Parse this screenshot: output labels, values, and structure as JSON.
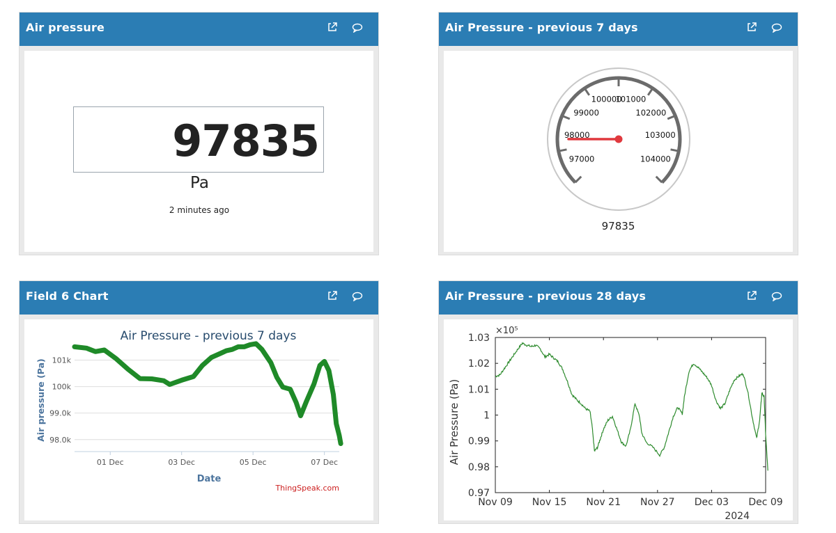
{
  "widgets": {
    "air_pressure": {
      "title": "Air pressure",
      "value": "97835",
      "unit": "Pa",
      "updated": "2 minutes ago"
    },
    "gauge": {
      "title": "Air Pressure - previous 7 days",
      "value": "97835",
      "ticks": [
        "97000",
        "98000",
        "99000",
        "100000",
        "101000",
        "102000",
        "103000",
        "104000"
      ],
      "needle_value": 97835,
      "colors": {
        "needle": "#e0393e",
        "ring": "#6b6b6b"
      }
    },
    "field6": {
      "title": "Field 6 Chart",
      "credit": "ThingSpeak.com"
    },
    "prev28": {
      "title": "Air Pressure - previous 28 days"
    }
  },
  "chart_data": [
    {
      "type": "line",
      "title": "Air Pressure - previous 7 days",
      "xlabel": "Date",
      "ylabel": "Air pressure (Pa)",
      "x_ticks": [
        "01 Dec",
        "03 Dec",
        "05 Dec",
        "07 Dec"
      ],
      "y_ticks": [
        "98.0k",
        "99.0k",
        "100k",
        "101k"
      ],
      "ylim": [
        97600,
        101800
      ],
      "xlim": [
        "2024-11-30T00:00",
        "2024-12-07T10:00"
      ],
      "grid": true,
      "color": "#1f8a28",
      "series": [
        {
          "values": [
            [
              "2024-11-30T00:00",
              101500
            ],
            [
              "2024-11-30T08:00",
              101450
            ],
            [
              "2024-11-30T14:00",
              101320
            ],
            [
              "2024-11-30T20:00",
              101380
            ],
            [
              "2024-12-01T04:00",
              101050
            ],
            [
              "2024-12-01T12:00",
              100650
            ],
            [
              "2024-12-01T20:00",
              100300
            ],
            [
              "2024-12-02T04:00",
              100290
            ],
            [
              "2024-12-02T12:00",
              100220
            ],
            [
              "2024-12-02T16:00",
              100080
            ],
            [
              "2024-12-03T00:00",
              100240
            ],
            [
              "2024-12-03T08:00",
              100380
            ],
            [
              "2024-12-03T14:00",
              100800
            ],
            [
              "2024-12-03T20:00",
              101100
            ],
            [
              "2024-12-04T02:00",
              101250
            ],
            [
              "2024-12-04T06:00",
              101350
            ],
            [
              "2024-12-04T10:00",
              101400
            ],
            [
              "2024-12-04T14:00",
              101500
            ],
            [
              "2024-12-04T18:00",
              101500
            ],
            [
              "2024-12-04T22:00",
              101580
            ],
            [
              "2024-12-05T02:00",
              101620
            ],
            [
              "2024-12-05T06:00",
              101400
            ],
            [
              "2024-12-05T12:00",
              100900
            ],
            [
              "2024-12-05T16:00",
              100350
            ],
            [
              "2024-12-05T20:00",
              99980
            ],
            [
              "2024-12-06T01:00",
              99900
            ],
            [
              "2024-12-06T05:00",
              99400
            ],
            [
              "2024-12-06T08:00",
              98900
            ],
            [
              "2024-12-06T12:00",
              99450
            ],
            [
              "2024-12-06T17:00",
              100100
            ],
            [
              "2024-12-06T21:00",
              100800
            ],
            [
              "2024-12-07T00:00",
              100950
            ],
            [
              "2024-12-07T03:00",
              100600
            ],
            [
              "2024-12-07T06:00",
              99700
            ],
            [
              "2024-12-07T08:00",
              98600
            ],
            [
              "2024-12-07T10:00",
              98150
            ],
            [
              "2024-12-07T11:00",
              97850
            ]
          ]
        }
      ]
    },
    {
      "type": "line",
      "title": "",
      "xlabel": "",
      "ylabel": "Air Pressure (Pa)",
      "x_ticks": [
        "Nov 09",
        "Nov 15",
        "Nov 21",
        "Nov 27",
        "Dec 03",
        "Dec 09"
      ],
      "x_tick_year": "2024",
      "y_ticks": [
        "0.97",
        "0.98",
        "0.99",
        "1",
        "1.01",
        "1.02",
        "1.03"
      ],
      "y_exponent": "×10⁵",
      "ylim": [
        97000,
        103000
      ],
      "xlim": [
        "2024-11-09",
        "2024-12-09"
      ],
      "grid": false,
      "color": "#2e8b2e",
      "series": [
        {
          "values": [
            [
              "2024-11-09T00:00",
              101500
            ],
            [
              "2024-11-09T12:00",
              101550
            ],
            [
              "2024-11-10T00:00",
              101800
            ],
            [
              "2024-11-10T12:00",
              102050
            ],
            [
              "2024-11-11T00:00",
              102300
            ],
            [
              "2024-11-11T12:00",
              102550
            ],
            [
              "2024-11-12T00:00",
              102780
            ],
            [
              "2024-11-12T12:00",
              102700
            ],
            [
              "2024-11-13T00:00",
              102650
            ],
            [
              "2024-11-13T12:00",
              102700
            ],
            [
              "2024-11-14T00:00",
              102550
            ],
            [
              "2024-11-14T12:00",
              102250
            ],
            [
              "2024-11-15T00:00",
              102350
            ],
            [
              "2024-11-15T12:00",
              102200
            ],
            [
              "2024-11-16T00:00",
              102050
            ],
            [
              "2024-11-16T12:00",
              101750
            ],
            [
              "2024-11-17T00:00",
              101300
            ],
            [
              "2024-11-17T12:00",
              100800
            ],
            [
              "2024-11-18T00:00",
              100600
            ],
            [
              "2024-11-18T12:00",
              100450
            ],
            [
              "2024-11-19T00:00",
              100250
            ],
            [
              "2024-11-19T12:00",
              100150
            ],
            [
              "2024-11-19T18:00",
              99550
            ],
            [
              "2024-11-20T00:00",
              98600
            ],
            [
              "2024-11-20T08:00",
              98750
            ],
            [
              "2024-11-20T16:00",
              99100
            ],
            [
              "2024-11-21T00:00",
              99450
            ],
            [
              "2024-11-21T12:00",
              99800
            ],
            [
              "2024-11-22T00:00",
              99950
            ],
            [
              "2024-11-22T12:00",
              99450
            ],
            [
              "2024-11-23T00:00",
              98950
            ],
            [
              "2024-11-23T12:00",
              98800
            ],
            [
              "2024-11-24T00:00",
              99450
            ],
            [
              "2024-11-24T12:00",
              100450
            ],
            [
              "2024-11-25T00:00",
              99950
            ],
            [
              "2024-11-25T06:00",
              99300
            ],
            [
              "2024-11-25T18:00",
              98950
            ],
            [
              "2024-11-26T12:00",
              98750
            ],
            [
              "2024-11-27T06:00",
              98450
            ],
            [
              "2024-11-27T18:00",
              98750
            ],
            [
              "2024-11-28T06:00",
              99350
            ],
            [
              "2024-11-28T18:00",
              99950
            ],
            [
              "2024-11-29T06:00",
              100300
            ],
            [
              "2024-11-29T18:00",
              100050
            ],
            [
              "2024-11-30T00:00",
              100750
            ],
            [
              "2024-11-30T12:00",
              101700
            ],
            [
              "2024-12-01T00:00",
              102000
            ],
            [
              "2024-12-01T12:00",
              101850
            ],
            [
              "2024-12-02T00:00",
              101650
            ],
            [
              "2024-12-02T12:00",
              101450
            ],
            [
              "2024-12-03T00:00",
              101150
            ],
            [
              "2024-12-03T12:00",
              100550
            ],
            [
              "2024-12-04T00:00",
              100250
            ],
            [
              "2024-12-04T12:00",
              100450
            ],
            [
              "2024-12-05T00:00",
              100950
            ],
            [
              "2024-12-05T12:00",
              101350
            ],
            [
              "2024-12-06T00:00",
              101500
            ],
            [
              "2024-12-06T12:00",
              101600
            ],
            [
              "2024-12-07T00:00",
              100950
            ],
            [
              "2024-12-07T12:00",
              99950
            ],
            [
              "2024-12-08T00:00",
              99100
            ],
            [
              "2024-12-08T08:00",
              99800
            ],
            [
              "2024-12-08T14:00",
              100850
            ],
            [
              "2024-12-08T20:00",
              100700
            ],
            [
              "2024-12-09T00:00",
              99250
            ],
            [
              "2024-12-09T06:00",
              97850
            ]
          ]
        }
      ]
    }
  ]
}
